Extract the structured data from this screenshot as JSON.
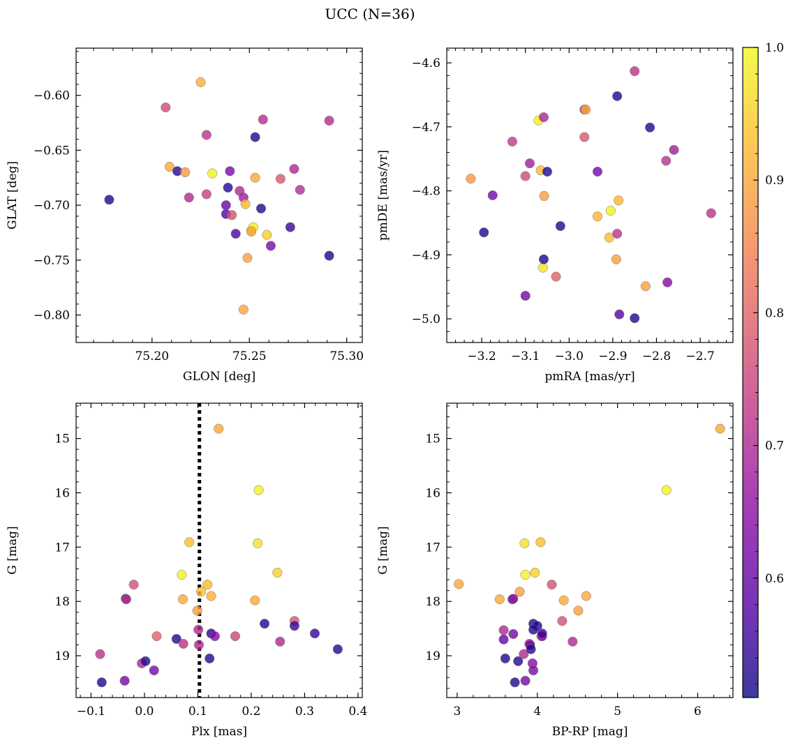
{
  "title": "UCC (N=36)",
  "colors": {
    "cmap_stops": [
      "#0d0887",
      "#5402a3",
      "#8b0aa5",
      "#b93289",
      "#db5c68",
      "#f48849",
      "#febc2a",
      "#f0f921"
    ],
    "point_edge": "#7a7a7a",
    "reference_line": "#000000"
  },
  "colorbar": {
    "range": [
      0.51,
      1.0
    ],
    "ticks": [
      "0.6",
      "0.7",
      "0.8",
      "0.9",
      "1.0"
    ],
    "tick_values": [
      0.6,
      0.7,
      0.8,
      0.9,
      1.0
    ]
  },
  "chart_data": [
    {
      "type": "scatter",
      "xlabel": "GLON [deg]",
      "ylabel": "GLAT [deg]",
      "xlim": [
        75.161,
        75.308
      ],
      "ylim": [
        -0.825,
        -0.557
      ],
      "y_inverted": false,
      "xticks": [
        75.2,
        75.25,
        75.3
      ],
      "xtick_labels": [
        "75.20",
        "75.25",
        "75.30"
      ],
      "yticks": [
        -0.6,
        -0.65,
        -0.7,
        -0.75,
        -0.8
      ],
      "ytick_labels": [
        "−0.60",
        "−0.65",
        "−0.70",
        "−0.75",
        "−0.80"
      ],
      "points": [
        {
          "x": 75.178,
          "y": -0.695,
          "c": 0.52
        },
        {
          "x": 75.207,
          "y": -0.611,
          "c": 0.76
        },
        {
          "x": 75.209,
          "y": -0.665,
          "c": 0.9
        },
        {
          "x": 75.213,
          "y": -0.669,
          "c": 0.53
        },
        {
          "x": 75.217,
          "y": -0.67,
          "c": 0.88
        },
        {
          "x": 75.219,
          "y": -0.693,
          "c": 0.7
        },
        {
          "x": 75.225,
          "y": -0.588,
          "c": 0.91
        },
        {
          "x": 75.228,
          "y": -0.636,
          "c": 0.72
        },
        {
          "x": 75.228,
          "y": -0.69,
          "c": 0.74
        },
        {
          "x": 75.231,
          "y": -0.671,
          "c": 0.99
        },
        {
          "x": 75.238,
          "y": -0.7,
          "c": 0.6
        },
        {
          "x": 75.238,
          "y": -0.708,
          "c": 0.58
        },
        {
          "x": 75.239,
          "y": -0.684,
          "c": 0.53
        },
        {
          "x": 75.24,
          "y": -0.669,
          "c": 0.63
        },
        {
          "x": 75.241,
          "y": -0.709,
          "c": 0.77
        },
        {
          "x": 75.243,
          "y": -0.726,
          "c": 0.57
        },
        {
          "x": 75.245,
          "y": -0.687,
          "c": 0.7
        },
        {
          "x": 75.247,
          "y": -0.693,
          "c": 0.68
        },
        {
          "x": 75.247,
          "y": -0.795,
          "c": 0.9
        },
        {
          "x": 75.248,
          "y": -0.699,
          "c": 0.92
        },
        {
          "x": 75.249,
          "y": -0.748,
          "c": 0.89
        },
        {
          "x": 75.251,
          "y": -0.723,
          "c": 0.93
        },
        {
          "x": 75.252,
          "y": -0.72,
          "c": 0.98
        },
        {
          "x": 75.253,
          "y": -0.675,
          "c": 0.9
        },
        {
          "x": 75.253,
          "y": -0.638,
          "c": 0.53
        },
        {
          "x": 75.256,
          "y": -0.703,
          "c": 0.53
        },
        {
          "x": 75.257,
          "y": -0.622,
          "c": 0.71
        },
        {
          "x": 75.259,
          "y": -0.727,
          "c": 0.95
        },
        {
          "x": 75.261,
          "y": -0.737,
          "c": 0.63
        },
        {
          "x": 75.266,
          "y": -0.676,
          "c": 0.78
        },
        {
          "x": 75.271,
          "y": -0.72,
          "c": 0.55
        },
        {
          "x": 75.273,
          "y": -0.667,
          "c": 0.7
        },
        {
          "x": 75.276,
          "y": -0.686,
          "c": 0.71
        },
        {
          "x": 75.291,
          "y": -0.746,
          "c": 0.52
        },
        {
          "x": 75.291,
          "y": -0.623,
          "c": 0.71
        },
        {
          "x": 75.251,
          "y": -0.724,
          "c": 0.9
        }
      ]
    },
    {
      "type": "scatter",
      "xlabel": "pmRA [mas/yr]",
      "ylabel": "pmDE [mas/yr]",
      "xlim": [
        -3.28,
        -2.625
      ],
      "ylim": [
        -5.037,
        -4.577
      ],
      "y_inverted": false,
      "xticks": [
        -3.2,
        -3.1,
        -3.0,
        -2.9,
        -2.8,
        -2.7
      ],
      "xtick_labels": [
        "−3.2",
        "−3.1",
        "−3.0",
        "−2.9",
        "−2.8",
        "−2.7"
      ],
      "yticks": [
        -4.6,
        -4.7,
        -4.8,
        -4.9,
        -5.0
      ],
      "ytick_labels": [
        "−4.6",
        "−4.7",
        "−4.8",
        "−4.9",
        "−5.0"
      ],
      "points": [
        {
          "x": -3.225,
          "y": -4.781,
          "c": 0.88
        },
        {
          "x": -3.195,
          "y": -4.865,
          "c": 0.53
        },
        {
          "x": -3.175,
          "y": -4.807,
          "c": 0.62
        },
        {
          "x": -3.13,
          "y": -4.723,
          "c": 0.73
        },
        {
          "x": -3.1,
          "y": -4.777,
          "c": 0.76
        },
        {
          "x": -3.1,
          "y": -4.964,
          "c": 0.62
        },
        {
          "x": -3.09,
          "y": -4.757,
          "c": 0.68
        },
        {
          "x": -3.07,
          "y": -4.69,
          "c": 0.99
        },
        {
          "x": -3.065,
          "y": -4.768,
          "c": 0.92
        },
        {
          "x": -3.06,
          "y": -4.92,
          "c": 0.97
        },
        {
          "x": -3.058,
          "y": -4.907,
          "c": 0.52
        },
        {
          "x": -3.058,
          "y": -4.685,
          "c": 0.7
        },
        {
          "x": -3.057,
          "y": -4.808,
          "c": 0.89
        },
        {
          "x": -3.05,
          "y": -4.77,
          "c": 0.53
        },
        {
          "x": -3.03,
          "y": -4.934,
          "c": 0.8
        },
        {
          "x": -3.02,
          "y": -4.855,
          "c": 0.53
        },
        {
          "x": -2.965,
          "y": -4.673,
          "c": 0.72
        },
        {
          "x": -2.962,
          "y": -4.673,
          "c": 0.9
        },
        {
          "x": -2.965,
          "y": -4.716,
          "c": 0.78
        },
        {
          "x": -2.935,
          "y": -4.77,
          "c": 0.62
        },
        {
          "x": -2.935,
          "y": -4.84,
          "c": 0.92
        },
        {
          "x": -2.908,
          "y": -4.873,
          "c": 0.93
        },
        {
          "x": -2.905,
          "y": -4.831,
          "c": 0.99
        },
        {
          "x": -2.892,
          "y": -4.907,
          "c": 0.89
        },
        {
          "x": -2.89,
          "y": -4.652,
          "c": 0.53
        },
        {
          "x": -2.89,
          "y": -4.867,
          "c": 0.72
        },
        {
          "x": -2.887,
          "y": -4.815,
          "c": 0.92
        },
        {
          "x": -2.885,
          "y": -4.993,
          "c": 0.58
        },
        {
          "x": -2.85,
          "y": -4.613,
          "c": 0.72
        },
        {
          "x": -2.85,
          "y": -4.999,
          "c": 0.53
        },
        {
          "x": -2.825,
          "y": -4.949,
          "c": 0.89
        },
        {
          "x": -2.815,
          "y": -4.701,
          "c": 0.53
        },
        {
          "x": -2.778,
          "y": -4.753,
          "c": 0.72
        },
        {
          "x": -2.775,
          "y": -4.943,
          "c": 0.64
        },
        {
          "x": -2.76,
          "y": -4.736,
          "c": 0.68
        },
        {
          "x": -2.675,
          "y": -4.835,
          "c": 0.72
        }
      ]
    },
    {
      "type": "scatter",
      "xlabel": "Plx [mas]",
      "ylabel": "G [mag]",
      "xlim": [
        -0.128,
        0.408
      ],
      "ylim": [
        14.35,
        19.77
      ],
      "y_inverted": true,
      "xticks": [
        -0.1,
        0.0,
        0.1,
        0.2,
        0.3,
        0.4
      ],
      "xtick_labels": [
        "−0.1",
        "0.0",
        "0.1",
        "0.2",
        "0.3",
        "0.4"
      ],
      "yticks": [
        15,
        16,
        17,
        18,
        19
      ],
      "ytick_labels": [
        "15",
        "16",
        "17",
        "18",
        "19"
      ],
      "vline": 0.103,
      "points": [
        {
          "x": -0.083,
          "y": 18.97,
          "c": 0.72
        },
        {
          "x": -0.08,
          "y": 19.49,
          "c": 0.53
        },
        {
          "x": -0.037,
          "y": 19.46,
          "c": 0.62
        },
        {
          "x": -0.035,
          "y": 17.95,
          "c": 0.53
        },
        {
          "x": -0.034,
          "y": 17.96,
          "c": 0.72
        },
        {
          "x": -0.02,
          "y": 17.69,
          "c": 0.77
        },
        {
          "x": -0.005,
          "y": 19.14,
          "c": 0.7
        },
        {
          "x": 0.002,
          "y": 19.1,
          "c": 0.53
        },
        {
          "x": 0.018,
          "y": 19.27,
          "c": 0.62
        },
        {
          "x": 0.023,
          "y": 18.64,
          "c": 0.8
        },
        {
          "x": 0.06,
          "y": 18.69,
          "c": 0.53
        },
        {
          "x": 0.07,
          "y": 17.51,
          "c": 0.99
        },
        {
          "x": 0.072,
          "y": 17.96,
          "c": 0.9
        },
        {
          "x": 0.073,
          "y": 18.78,
          "c": 0.72
        },
        {
          "x": 0.084,
          "y": 16.91,
          "c": 0.93
        },
        {
          "x": 0.099,
          "y": 18.17,
          "c": 0.89
        },
        {
          "x": 0.101,
          "y": 18.52,
          "c": 0.7
        },
        {
          "x": 0.102,
          "y": 18.8,
          "c": 0.7
        },
        {
          "x": 0.106,
          "y": 17.82,
          "c": 0.93
        },
        {
          "x": 0.118,
          "y": 17.69,
          "c": 0.92
        },
        {
          "x": 0.122,
          "y": 19.05,
          "c": 0.53
        },
        {
          "x": 0.125,
          "y": 17.9,
          "c": 0.91
        },
        {
          "x": 0.125,
          "y": 18.59,
          "c": 0.53
        },
        {
          "x": 0.132,
          "y": 18.64,
          "c": 0.65
        },
        {
          "x": 0.139,
          "y": 14.82,
          "c": 0.9
        },
        {
          "x": 0.17,
          "y": 18.64,
          "c": 0.75
        },
        {
          "x": 0.207,
          "y": 17.98,
          "c": 0.9
        },
        {
          "x": 0.212,
          "y": 16.93,
          "c": 0.97
        },
        {
          "x": 0.214,
          "y": 15.95,
          "c": 0.99
        },
        {
          "x": 0.225,
          "y": 18.41,
          "c": 0.53
        },
        {
          "x": 0.249,
          "y": 17.47,
          "c": 0.95
        },
        {
          "x": 0.254,
          "y": 18.74,
          "c": 0.7
        },
        {
          "x": 0.281,
          "y": 18.36,
          "c": 0.77
        },
        {
          "x": 0.281,
          "y": 18.45,
          "c": 0.55
        },
        {
          "x": 0.319,
          "y": 18.59,
          "c": 0.55
        },
        {
          "x": 0.362,
          "y": 18.88,
          "c": 0.53
        }
      ]
    },
    {
      "type": "scatter",
      "xlabel": "BP-RP [mag]",
      "ylabel": "G [mag]",
      "xlim": [
        2.87,
        6.44
      ],
      "ylim": [
        14.35,
        19.77
      ],
      "y_inverted": true,
      "xticks": [
        3,
        4,
        5,
        6
      ],
      "xtick_labels": [
        "3",
        "4",
        "5",
        "6"
      ],
      "yticks": [
        15,
        16,
        17,
        18,
        19
      ],
      "ytick_labels": [
        "15",
        "16",
        "17",
        "18",
        "19"
      ],
      "points": [
        {
          "x": 3.02,
          "y": 17.68,
          "c": 0.9
        },
        {
          "x": 3.53,
          "y": 17.96,
          "c": 0.9
        },
        {
          "x": 3.58,
          "y": 18.53,
          "c": 0.7
        },
        {
          "x": 3.58,
          "y": 18.7,
          "c": 0.6
        },
        {
          "x": 3.6,
          "y": 19.05,
          "c": 0.53
        },
        {
          "x": 3.69,
          "y": 17.96,
          "c": 0.53
        },
        {
          "x": 3.7,
          "y": 17.95,
          "c": 0.68
        },
        {
          "x": 3.7,
          "y": 18.6,
          "c": 0.62
        },
        {
          "x": 3.72,
          "y": 19.49,
          "c": 0.53
        },
        {
          "x": 3.76,
          "y": 19.1,
          "c": 0.53
        },
        {
          "x": 3.78,
          "y": 17.82,
          "c": 0.89
        },
        {
          "x": 3.83,
          "y": 18.97,
          "c": 0.7
        },
        {
          "x": 3.84,
          "y": 16.93,
          "c": 0.97
        },
        {
          "x": 3.85,
          "y": 17.51,
          "c": 0.99
        },
        {
          "x": 3.85,
          "y": 19.46,
          "c": 0.62
        },
        {
          "x": 3.9,
          "y": 18.78,
          "c": 0.7
        },
        {
          "x": 3.91,
          "y": 18.8,
          "c": 0.62
        },
        {
          "x": 3.92,
          "y": 18.88,
          "c": 0.53
        },
        {
          "x": 3.94,
          "y": 19.14,
          "c": 0.65
        },
        {
          "x": 3.95,
          "y": 19.27,
          "c": 0.62
        },
        {
          "x": 3.95,
          "y": 18.41,
          "c": 0.53
        },
        {
          "x": 3.97,
          "y": 17.47,
          "c": 0.95
        },
        {
          "x": 4.0,
          "y": 18.45,
          "c": 0.53
        },
        {
          "x": 4.04,
          "y": 16.91,
          "c": 0.93
        },
        {
          "x": 4.05,
          "y": 18.64,
          "c": 0.8
        },
        {
          "x": 4.06,
          "y": 18.64,
          "c": 0.65
        },
        {
          "x": 4.06,
          "y": 18.59,
          "c": 0.55
        },
        {
          "x": 4.18,
          "y": 17.69,
          "c": 0.77
        },
        {
          "x": 4.31,
          "y": 18.36,
          "c": 0.77
        },
        {
          "x": 4.33,
          "y": 17.98,
          "c": 0.9
        },
        {
          "x": 4.44,
          "y": 18.74,
          "c": 0.7
        },
        {
          "x": 4.51,
          "y": 18.17,
          "c": 0.89
        },
        {
          "x": 4.61,
          "y": 17.9,
          "c": 0.9
        },
        {
          "x": 5.61,
          "y": 15.95,
          "c": 0.99
        },
        {
          "x": 6.28,
          "y": 14.82,
          "c": 0.9
        },
        {
          "x": 3.95,
          "y": 18.52,
          "c": 0.53
        }
      ]
    }
  ]
}
